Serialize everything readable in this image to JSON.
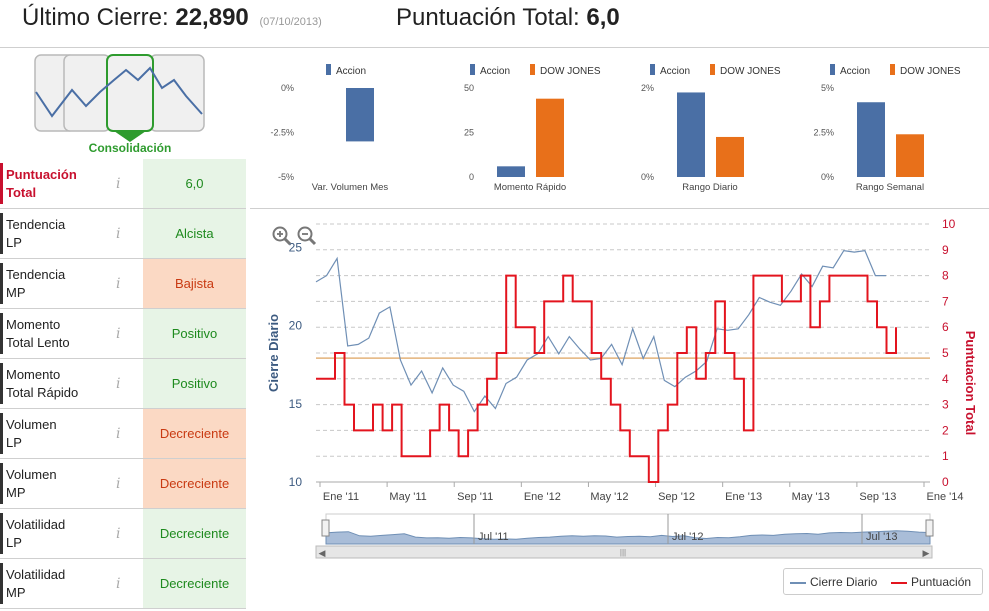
{
  "header": {
    "last_close_label": "Último Cierre:",
    "last_close_value": "22,890",
    "last_close_date": "(07/10/2013)",
    "total_score_label": "Puntuación Total:",
    "total_score_value": "6,0"
  },
  "pattern": {
    "label": "Consolidación"
  },
  "info_glyph": "i",
  "metrics": [
    {
      "label1": "Puntuación",
      "label2": "Total",
      "value": "6,0",
      "tone": "green"
    },
    {
      "label1": "Tendencia",
      "label2": "LP",
      "value": "Alcista",
      "tone": "green"
    },
    {
      "label1": "Tendencia",
      "label2": "MP",
      "value": "Bajista",
      "tone": "orange"
    },
    {
      "label1": "Momento",
      "label2": "Total Lento",
      "value": "Positivo",
      "tone": "green"
    },
    {
      "label1": "Momento",
      "label2": "Total Rápido",
      "value": "Positivo",
      "tone": "green"
    },
    {
      "label1": "Volumen",
      "label2": "LP",
      "value": "Decreciente",
      "tone": "orange"
    },
    {
      "label1": "Volumen",
      "label2": "MP",
      "value": "Decreciente",
      "tone": "orange"
    },
    {
      "label1": "Volatilidad",
      "label2": "LP",
      "value": "Decreciente",
      "tone": "green"
    },
    {
      "label1": "Volatilidad",
      "label2": "MP",
      "value": "Decreciente",
      "tone": "green"
    }
  ],
  "colors": {
    "accion": "#4a6fa5",
    "dow": "#e8701a",
    "cierre": "#6f8fb5",
    "punt": "#e3141e",
    "ref": "#e3b27a",
    "green": "#2e9b2e"
  },
  "chart_data": [
    {
      "type": "bar",
      "xlabel": "Var. Volumen Mes",
      "series": [
        {
          "name": "Accion",
          "values": [
            -3.0
          ]
        }
      ],
      "ylim": [
        -5,
        0
      ],
      "ticks": [
        "0%",
        "-2.5%",
        "-5%"
      ]
    },
    {
      "type": "bar",
      "xlabel": "Momento Rápido",
      "series": [
        {
          "name": "Accion",
          "values": [
            6
          ]
        },
        {
          "name": "DOW JONES",
          "values": [
            44
          ]
        }
      ],
      "ylim": [
        0,
        50
      ],
      "ticks": [
        "50",
        "25",
        "0"
      ]
    },
    {
      "type": "bar",
      "xlabel": "Rango Diario",
      "series": [
        {
          "name": "Accion",
          "values": [
            1.9
          ]
        },
        {
          "name": "DOW JONES",
          "values": [
            0.9
          ]
        }
      ],
      "ylim": [
        0,
        2
      ],
      "ticks": [
        "2%",
        "",
        "0%"
      ]
    },
    {
      "type": "bar",
      "xlabel": "Rango Semanal",
      "series": [
        {
          "name": "Accion",
          "values": [
            4.2
          ]
        },
        {
          "name": "DOW JONES",
          "values": [
            2.4
          ]
        }
      ],
      "ylim": [
        0,
        5
      ],
      "ticks": [
        "5%",
        "2.5%",
        "0%"
      ]
    },
    {
      "type": "line",
      "left_axis_label": "Cierre Diario",
      "right_axis_label": "Puntuacion Total",
      "left_ticks": [
        10,
        15,
        20,
        25
      ],
      "right_ticks": [
        0,
        1,
        2,
        3,
        4,
        5,
        6,
        7,
        8,
        9,
        10
      ],
      "left_ylim": [
        10,
        26.5
      ],
      "right_ylim": [
        0,
        10
      ],
      "x_ticks": [
        "Ene '11",
        "May '11",
        "Sep '11",
        "Ene '12",
        "May '12",
        "Sep '12",
        "Ene '13",
        "May '13",
        "Sep '13",
        "Ene '14"
      ],
      "reference_level": 4.8,
      "navigator_labels": [
        "Jul '11",
        "Jul '12",
        "Jul '13"
      ],
      "series": [
        {
          "name": "Cierre Diario",
          "values": [
            22.5,
            23.5,
            24.0,
            19.0,
            18.5,
            19.5,
            20.5,
            21.5,
            17.5,
            16.5,
            16.8,
            16.0,
            17.0,
            16.5,
            15.5,
            14.8,
            15.2,
            15.0,
            16.0,
            17.0,
            17.5,
            18.5,
            19.0,
            18.5,
            19.0,
            18.8,
            17.5,
            18.2,
            18.5,
            17.8,
            19.5,
            18.2,
            19.0,
            16.8,
            15.8,
            17.0,
            16.8,
            18.0,
            19.5,
            20.0,
            19.5,
            21.0,
            21.5,
            21.8,
            21.0,
            22.5,
            23.0,
            22.8,
            23.5,
            24.0,
            24.5,
            25.0,
            24.5,
            23.5,
            22.9
          ]
        },
        {
          "name": "Puntuación",
          "values": [
            4,
            4,
            5,
            3,
            2,
            2,
            3,
            2,
            3,
            1,
            1,
            1,
            2,
            3,
            2,
            1,
            2,
            3,
            4,
            5,
            8,
            6,
            6,
            5,
            7,
            7,
            8,
            7,
            7,
            5,
            4,
            3,
            2,
            1,
            1,
            0,
            2,
            3,
            5,
            6,
            4,
            5,
            7,
            5,
            4,
            2,
            8,
            8,
            8,
            7,
            7,
            8,
            6,
            7,
            8,
            8,
            8,
            8,
            7,
            6,
            5,
            6
          ]
        }
      ]
    }
  ],
  "legend": {
    "cierre": "Cierre Diario",
    "punt": "Puntuación"
  }
}
